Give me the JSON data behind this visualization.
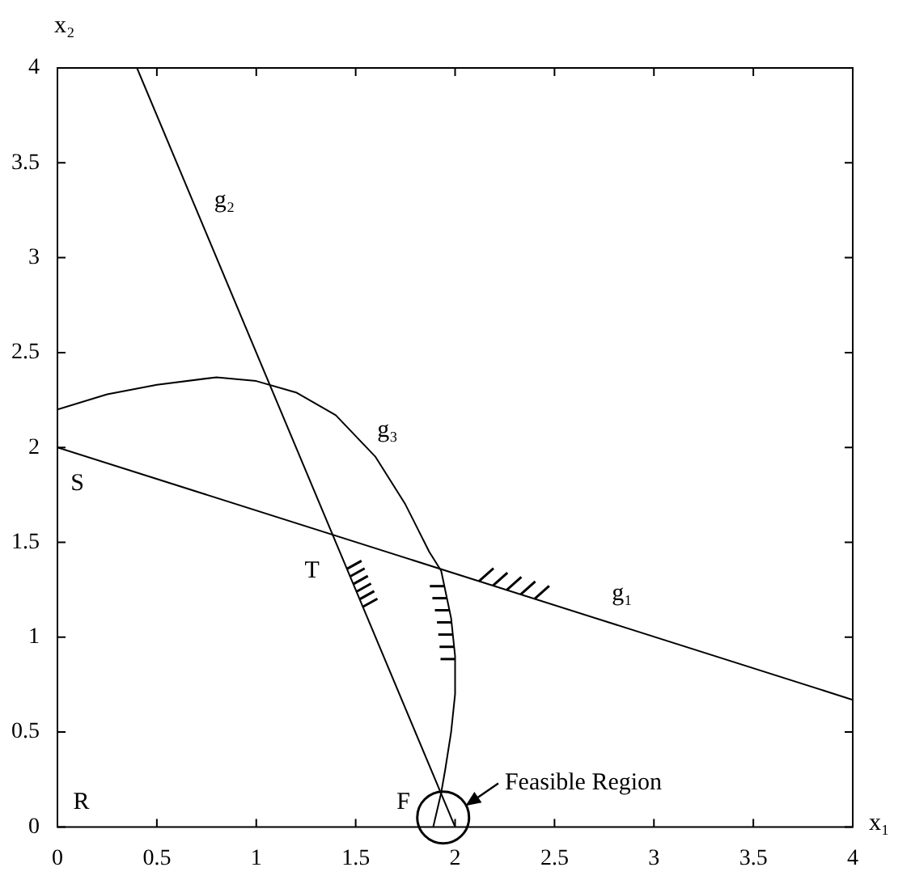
{
  "chart_data": {
    "type": "line",
    "xlabel": "x₁",
    "ylabel": "x₂",
    "marker": "none",
    "line_style": "solid",
    "xlim": [
      0,
      4
    ],
    "ylim": [
      0,
      4
    ],
    "xticks": [
      0,
      0.5,
      1,
      1.5,
      2,
      2.5,
      3,
      3.5,
      4
    ],
    "yticks": [
      0,
      0.5,
      1,
      1.5,
      2,
      2.5,
      3,
      3.5,
      4
    ],
    "series": [
      {
        "name": "g₁",
        "color": "#000000",
        "x": [
          0,
          4
        ],
        "values": [
          2,
          0.67
        ]
      },
      {
        "name": "g₂",
        "color": "#000000",
        "x": [
          0.4,
          2
        ],
        "values": [
          4,
          0
        ]
      },
      {
        "name": "g₃",
        "color": "#000000",
        "x": [
          0,
          0.25,
          0.5,
          0.8,
          1.0,
          1.2,
          1.4,
          1.6,
          1.75,
          1.87,
          1.93,
          1.98,
          2.0,
          2.0,
          1.98,
          1.95,
          1.93,
          1.89
        ],
        "values": [
          2.2,
          2.28,
          2.33,
          2.37,
          2.35,
          2.29,
          2.17,
          1.95,
          1.7,
          1.45,
          1.35,
          1.1,
          0.9,
          0.7,
          0.5,
          0.3,
          0.18,
          0
        ]
      }
    ],
    "annotations": [
      "S",
      "T",
      "R",
      "F",
      "Feasible Region"
    ]
  }
}
